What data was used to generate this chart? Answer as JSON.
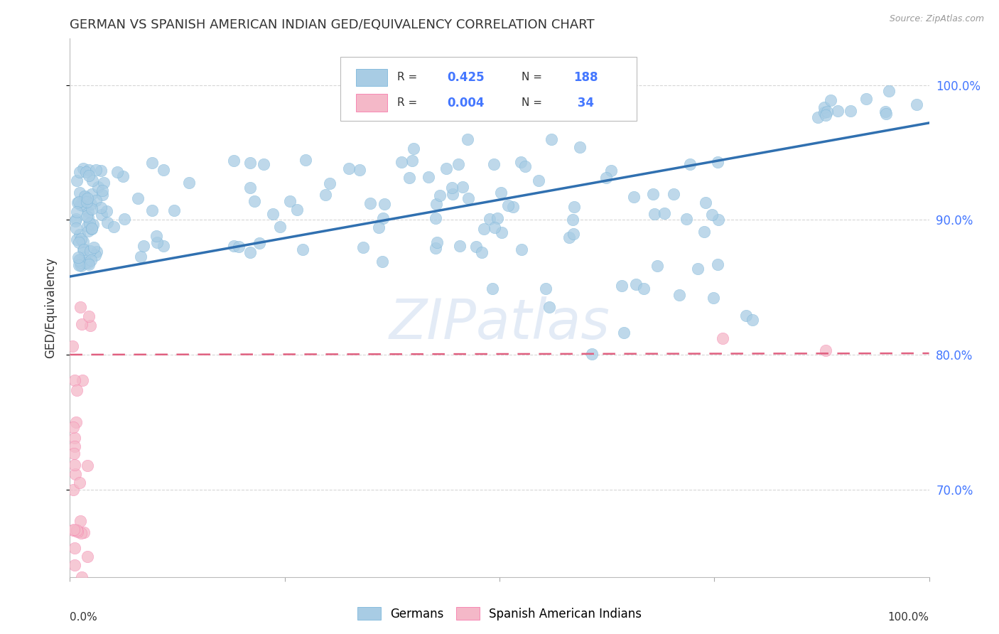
{
  "title": "GERMAN VS SPANISH AMERICAN INDIAN GED/EQUIVALENCY CORRELATION CHART",
  "source": "Source: ZipAtlas.com",
  "ylabel": "GED/Equivalency",
  "blue_R": 0.425,
  "blue_N": 188,
  "pink_R": 0.004,
  "pink_N": 34,
  "blue_color": "#a8cce4",
  "blue_edge_color": "#6baed6",
  "pink_color": "#f4b8c8",
  "pink_edge_color": "#f768a1",
  "blue_line_color": "#3070b0",
  "pink_line_color": "#e06080",
  "watermark": "ZIPatlas",
  "background_color": "#ffffff",
  "grid_color": "#cccccc",
  "title_color": "#333333",
  "right_tick_color": "#4477ff",
  "xmin": 0.0,
  "xmax": 1.0,
  "ymin": 0.635,
  "ymax": 1.035,
  "yticks": [
    0.7,
    0.8,
    0.9,
    1.0
  ],
  "ytick_labels": [
    "70.0%",
    "80.0%",
    "90.0%",
    "100.0%"
  ],
  "blue_line_x0": 0.0,
  "blue_line_y0": 0.858,
  "blue_line_x1": 1.0,
  "blue_line_y1": 0.972,
  "pink_line_x0": 0.0,
  "pink_line_y0": 0.8,
  "pink_line_x1": 1.0,
  "pink_line_y1": 0.801
}
